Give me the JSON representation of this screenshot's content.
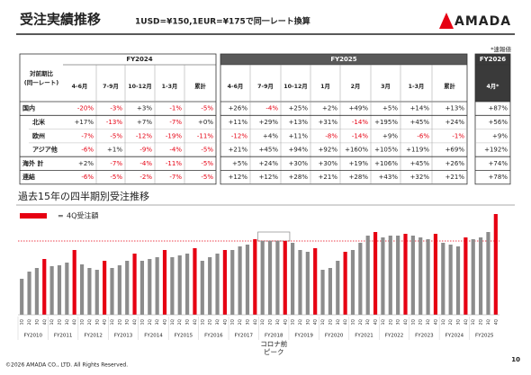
{
  "header": {
    "title": "受注実績推移",
    "subtitle": "1USD=¥150,1EUR=¥175で同一レート換算",
    "logo": "AMADA",
    "note": "*速報値"
  },
  "table": {
    "corner": [
      "対前期比",
      "(同一レート)"
    ],
    "groups": [
      {
        "name": "FY2024",
        "columns": [
          "4-6月",
          "7-9月",
          "10-12月",
          "1-3月",
          "累計"
        ]
      },
      {
        "name": "FY2025",
        "columns": [
          "4-6月",
          "7-9月",
          "10-12月",
          "1月",
          "2月",
          "3月",
          "1-3月",
          "累計"
        ]
      },
      {
        "name": "FY2026",
        "columns": [
          "4月*"
        ]
      }
    ],
    "rows": [
      {
        "label": "国内",
        "cells": [
          "-20%",
          "-3%",
          "+3%",
          "-1%",
          "-5%",
          "+26%",
          "-4%",
          "+25%",
          "+2%",
          "+49%",
          "+5%",
          "+14%",
          "+13%",
          "+87%"
        ]
      },
      {
        "label": "北米",
        "cells": [
          "+17%",
          "-13%",
          "+7%",
          "-7%",
          "+0%",
          "+11%",
          "+29%",
          "+13%",
          "+31%",
          "-14%",
          "+195%",
          "+45%",
          "+24%",
          "+56%"
        ]
      },
      {
        "label": "欧州",
        "cells": [
          "-7%",
          "-5%",
          "-12%",
          "-19%",
          "-11%",
          "-12%",
          "+4%",
          "+11%",
          "-8%",
          "-14%",
          "+9%",
          "-6%",
          "-1%",
          "+9%"
        ]
      },
      {
        "label": "アジア他",
        "cells": [
          "-6%",
          "+1%",
          "-9%",
          "-4%",
          "-5%",
          "+21%",
          "+45%",
          "+94%",
          "+92%",
          "+160%",
          "+105%",
          "+119%",
          "+69%",
          "+192%"
        ]
      },
      {
        "label": "海外 計",
        "cells": [
          "+2%",
          "-7%",
          "-4%",
          "-11%",
          "-5%",
          "+5%",
          "+24%",
          "+30%",
          "+30%",
          "+19%",
          "+106%",
          "+45%",
          "+26%",
          "+74%"
        ]
      },
      {
        "label": "連結",
        "cells": [
          "-6%",
          "-5%",
          "-2%",
          "-7%",
          "-5%",
          "+12%",
          "+12%",
          "+28%",
          "+21%",
          "+28%",
          "+43%",
          "+32%",
          "+21%",
          "+78%"
        ]
      }
    ]
  },
  "chart_data": {
    "type": "bar",
    "title": "過去15年の四半期別受注推移",
    "categories": [
      "1Q",
      "2Q",
      "3Q",
      "4Q",
      "1Q",
      "2Q",
      "3Q",
      "4Q",
      "1Q",
      "2Q",
      "3Q",
      "4Q",
      "1Q",
      "2Q",
      "3Q",
      "4Q",
      "1Q",
      "2Q",
      "3Q",
      "4Q",
      "1Q",
      "2Q",
      "3Q",
      "4Q",
      "1Q",
      "2Q",
      "3Q",
      "4Q",
      "1Q",
      "2Q",
      "3Q",
      "4Q",
      "1Q",
      "2Q",
      "3Q",
      "4Q",
      "1Q",
      "2Q",
      "3Q",
      "4Q",
      "1Q",
      "2Q",
      "3Q",
      "4Q",
      "1Q",
      "2Q",
      "3Q",
      "4Q",
      "1Q",
      "2Q",
      "3Q",
      "4Q",
      "1Q",
      "2Q",
      "3Q",
      "4Q",
      "1Q",
      "2Q",
      "3Q",
      "4Q",
      "1Q",
      "2Q",
      "3Q",
      "4Q"
    ],
    "groups": [
      "FY2010",
      "FY2011",
      "FY2012",
      "FY2013",
      "FY2014",
      "FY2015",
      "FY2016",
      "FY2017",
      "FY2018",
      "FY2019",
      "FY2020",
      "FY2021",
      "FY2022",
      "FY2023",
      "FY2024",
      "FY2025"
    ],
    "values": [
      40,
      48,
      52,
      62,
      54,
      55,
      58,
      72,
      56,
      52,
      50,
      60,
      52,
      55,
      60,
      68,
      60,
      62,
      64,
      72,
      64,
      66,
      68,
      74,
      60,
      64,
      68,
      72,
      72,
      76,
      78,
      84,
      82,
      82,
      82,
      82,
      80,
      72,
      70,
      74,
      50,
      52,
      60,
      70,
      72,
      80,
      88,
      92,
      86,
      88,
      88,
      90,
      88,
      86,
      84,
      90,
      80,
      78,
      76,
      86,
      84,
      86,
      92,
      112
    ],
    "ylim": [
      0,
      120
    ],
    "color": "#8c8c8c",
    "highlight": {
      "name": "4Q受注額",
      "category": "4Q",
      "color": "#e60012"
    },
    "legend_prefix": "=",
    "reference_line": 82,
    "annotation": {
      "group": 8,
      "lines": [
        "コロナ前",
        "ピーク"
      ]
    }
  },
  "footer": {
    "copyright": "©2026 AMADA CO., LTD. All Rights Reserved.",
    "page": "10"
  }
}
